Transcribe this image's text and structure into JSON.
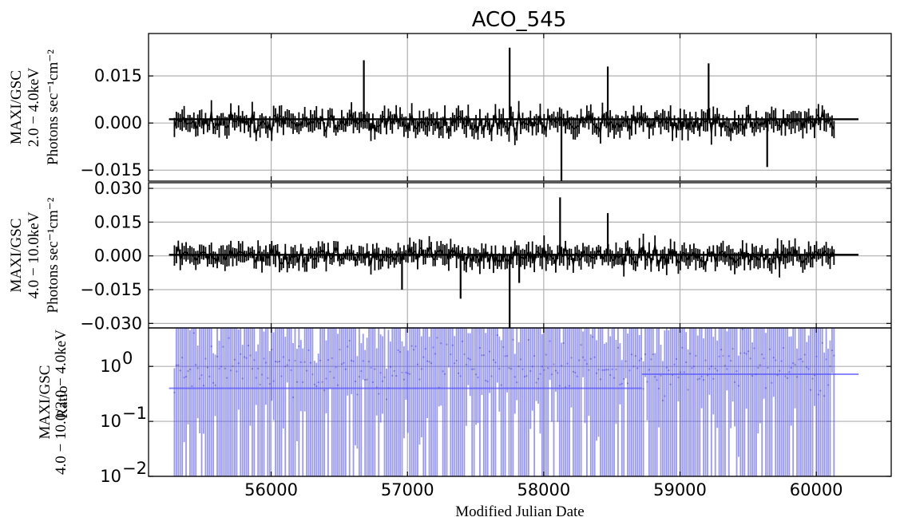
{
  "chart_data": [
    {
      "type": "line",
      "panel": "top",
      "title": "ACO_545",
      "ylabel_lines": [
        "MAXI/GSC",
        "2.0 − 4.0keV",
        "Photons sec⁻¹cm⁻²"
      ],
      "xlabel": "",
      "xlim": [
        55100,
        60550
      ],
      "ylim": [
        -0.0185,
        0.0285
      ],
      "y_ticks": [
        -0.015,
        0.0,
        0.015
      ],
      "y_tick_labels": [
        "−0.015",
        "0.000",
        "0.015"
      ],
      "x_ticks": [
        56000,
        57000,
        58000,
        59000,
        60000
      ],
      "grid": true,
      "color": "#000000",
      "series": [
        {
          "x": [
            55300,
            55500,
            55700,
            55900,
            56100,
            56300,
            56500,
            56680,
            56900,
            57100,
            57300,
            57500,
            57750,
            57900,
            58130,
            58300,
            58470,
            58700,
            58900,
            59100,
            59210,
            59400,
            59640,
            59800,
            60000,
            60100
          ],
          "y": [
            0.001,
            0.0,
            0.002,
            0.001,
            0.0,
            -0.002,
            0.001,
            0.02,
            0.001,
            -0.002,
            0.0,
            0.002,
            0.024,
            0.001,
            -0.019,
            0.002,
            0.018,
            0.0,
            0.001,
            0.002,
            0.019,
            0.0,
            -0.014,
            0.001,
            0.0,
            0.001
          ]
        }
      ],
      "mean_line": {
        "y": 0.0012,
        "x_range": [
          55250,
          60310
        ]
      },
      "noise_scatter": 0.004,
      "n_points": 340
    },
    {
      "type": "line",
      "panel": "middle",
      "ylabel_lines": [
        "MAXI/GSC",
        "4.0 − 10.0keV",
        "Photons sec⁻¹cm⁻²"
      ],
      "xlabel": "",
      "xlim": [
        55100,
        60550
      ],
      "ylim": [
        -0.032,
        0.0325
      ],
      "y_ticks": [
        -0.03,
        -0.015,
        0.0,
        0.015,
        0.03
      ],
      "y_tick_labels": [
        "−0.030",
        "−0.015",
        "0.000",
        "0.015",
        "0.030"
      ],
      "x_ticks": [
        56000,
        57000,
        58000,
        59000,
        60000
      ],
      "grid": true,
      "color": "#000000",
      "series": [
        {
          "x": [
            55300,
            55500,
            55700,
            55900,
            56100,
            56300,
            56530,
            56800,
            56960,
            57200,
            57390,
            57600,
            57750,
            57820,
            58000,
            58120,
            58300,
            58470,
            58700,
            58900,
            59100,
            59300,
            59500,
            59700,
            59900,
            60100
          ],
          "y": [
            0.0,
            -0.002,
            0.001,
            0.0,
            0.002,
            -0.001,
            -0.003,
            0.001,
            -0.015,
            0.0,
            -0.019,
            0.003,
            -0.032,
            -0.012,
            0.002,
            0.026,
            0.003,
            0.019,
            0.0,
            0.001,
            -0.002,
            0.0,
            0.001,
            -0.001,
            0.0,
            0.001
          ]
        }
      ],
      "mean_line": {
        "y": 0.0005,
        "x_range": [
          55250,
          60310
        ]
      },
      "noise_scatter": 0.0055,
      "n_points": 340
    },
    {
      "type": "line",
      "panel": "bottom",
      "ylabel_lines": [
        "MAXI/GSC",
        "Ratio",
        "4.0 − 10.0/2.0 − 4.0keV"
      ],
      "xlabel": "Modified Julian Date",
      "xlim": [
        55100,
        60550
      ],
      "ylim": [
        0.01,
        5.0
      ],
      "yscale": "log",
      "y_ticks": [
        0.01,
        0.1,
        1.0
      ],
      "y_tick_labels": [
        "10",
        "10",
        "10"
      ],
      "y_tick_exponents": [
        "−2",
        "−1",
        "0"
      ],
      "x_ticks": [
        56000,
        57000,
        58000,
        59000,
        60000
      ],
      "x_tick_labels": [
        "56000",
        "57000",
        "58000",
        "59000",
        "60000"
      ],
      "grid": true,
      "color": "#4444ee",
      "series": [
        {
          "x": [
            55300,
            55800,
            56300,
            56800,
            57300,
            57800,
            58300,
            58800,
            59300,
            59800,
            60100
          ],
          "y": [
            0.6,
            1.1,
            0.9,
            0.8,
            1.3,
            1.0,
            1.2,
            0.7,
            1.0,
            0.9,
            0.8
          ]
        }
      ],
      "reference_lines": [
        {
          "y": 0.4,
          "x_range": [
            55250,
            58720
          ]
        },
        {
          "y": 0.72,
          "x_range": [
            58720,
            60310
          ]
        }
      ],
      "n_points": 340
    }
  ]
}
